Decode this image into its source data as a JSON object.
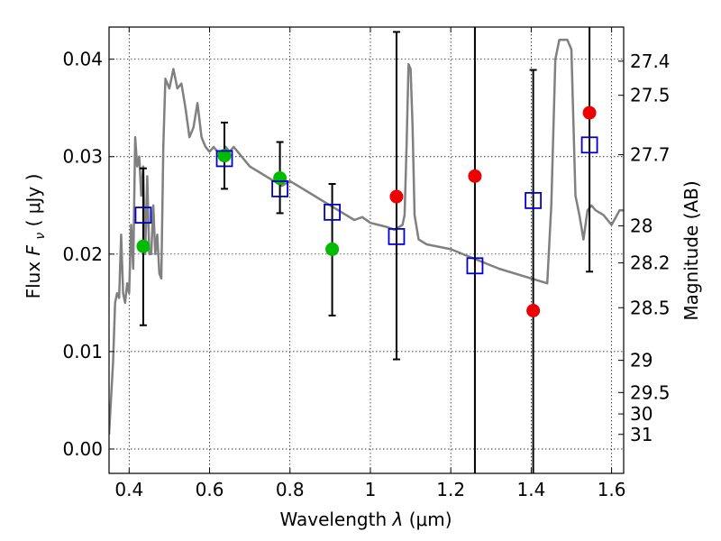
{
  "chart_data": {
    "type": "scatter",
    "title": "",
    "xlabel": {
      "prefix": "Wavelength ",
      "symbol": "λ",
      "unit": " (μm)"
    },
    "ylabel": {
      "prefix": "Flux ",
      "symbol": "F",
      "subscript": "ν",
      "unit": " ( μJy )"
    },
    "y2label": "Magnitude (AB)",
    "xlim": [
      0.35,
      1.63
    ],
    "ylim": [
      -0.0025,
      0.0433
    ],
    "grid": true,
    "legend": "none",
    "xticks": [
      0.4,
      0.6,
      0.8,
      1.0,
      1.2,
      1.4,
      1.6
    ],
    "xtick_labels": [
      "0.4",
      "0.6",
      "0.8",
      "1",
      "1.2",
      "1.4",
      "1.6"
    ],
    "yticks": [
      0.0,
      0.01,
      0.02,
      0.03,
      0.04
    ],
    "ytick_labels": [
      "0.00",
      "0.01",
      "0.02",
      "0.03",
      "0.04"
    ],
    "magnitude_ticks": [
      {
        "label": "27.4",
        "flux": 0.0398
      },
      {
        "label": "27.5",
        "flux": 0.0363
      },
      {
        "label": "27.7",
        "flux": 0.0302
      },
      {
        "label": "28",
        "flux": 0.0229
      },
      {
        "label": "28.2",
        "flux": 0.0191
      },
      {
        "label": "28.5",
        "flux": 0.0145
      },
      {
        "label": "29",
        "flux": 0.0091
      },
      {
        "label": "29.5",
        "flux": 0.0058
      },
      {
        "label": "30",
        "flux": 0.0036
      },
      {
        "label": "31",
        "flux": 0.0015
      }
    ],
    "colors": {
      "model": "#808080",
      "model_photometry": "#0000cc",
      "detected": "#00bb00",
      "nondetected": "#ee0000",
      "errorbar": "#000000"
    },
    "sed_model": {
      "x": [
        0.35,
        0.36,
        0.365,
        0.37,
        0.375,
        0.38,
        0.385,
        0.39,
        0.395,
        0.4,
        0.405,
        0.41,
        0.415,
        0.42,
        0.425,
        0.43,
        0.435,
        0.44,
        0.445,
        0.45,
        0.455,
        0.46,
        0.465,
        0.47,
        0.475,
        0.48,
        0.485,
        0.49,
        0.5,
        0.51,
        0.52,
        0.53,
        0.54,
        0.55,
        0.56,
        0.57,
        0.58,
        0.585,
        0.59,
        0.6,
        0.61,
        0.62,
        0.63,
        0.64,
        0.65,
        0.66,
        0.68,
        0.7,
        0.72,
        0.74,
        0.76,
        0.78,
        0.8,
        0.82,
        0.84,
        0.86,
        0.88,
        0.9,
        0.92,
        0.94,
        0.96,
        0.98,
        1.0,
        1.02,
        1.04,
        1.06,
        1.08,
        1.085,
        1.09,
        1.095,
        1.1,
        1.105,
        1.11,
        1.12,
        1.14,
        1.2,
        1.26,
        1.32,
        1.4,
        1.44,
        1.45,
        1.46,
        1.47,
        1.48,
        1.49,
        1.5,
        1.51,
        1.52,
        1.53,
        1.54,
        1.55,
        1.56,
        1.58,
        1.6,
        1.62,
        1.63
      ],
      "y": [
        0.0015,
        0.009,
        0.015,
        0.016,
        0.0155,
        0.022,
        0.016,
        0.015,
        0.017,
        0.016,
        0.023,
        0.0185,
        0.032,
        0.029,
        0.03,
        0.026,
        0.029,
        0.02,
        0.028,
        0.02,
        0.02,
        0.025,
        0.02,
        0.022,
        0.018,
        0.0175,
        0.031,
        0.038,
        0.037,
        0.039,
        0.037,
        0.0375,
        0.035,
        0.032,
        0.033,
        0.0355,
        0.032,
        0.0315,
        0.031,
        0.0305,
        0.031,
        0.0305,
        0.03,
        0.031,
        0.0305,
        0.031,
        0.03,
        0.029,
        0.0285,
        0.028,
        0.0275,
        0.027,
        0.0275,
        0.027,
        0.0265,
        0.026,
        0.0255,
        0.025,
        0.0245,
        0.024,
        0.0235,
        0.0238,
        0.0232,
        0.023,
        0.0228,
        0.0225,
        0.023,
        0.024,
        0.031,
        0.0395,
        0.039,
        0.033,
        0.024,
        0.0215,
        0.021,
        0.0205,
        0.0195,
        0.0185,
        0.0175,
        0.017,
        0.025,
        0.04,
        0.042,
        0.042,
        0.042,
        0.041,
        0.026,
        0.024,
        0.0215,
        0.0245,
        0.025,
        0.0245,
        0.024,
        0.023,
        0.0245,
        0.0245
      ]
    },
    "model_photometry": {
      "x": [
        0.435,
        0.637,
        0.775,
        0.905,
        1.065,
        1.26,
        1.405,
        1.545
      ],
      "y": [
        0.024,
        0.0298,
        0.0267,
        0.0243,
        0.0218,
        0.0188,
        0.0255,
        0.0312
      ]
    },
    "detected": {
      "x": [
        0.435,
        0.637,
        0.775,
        0.905
      ],
      "y": [
        0.0208,
        0.0301,
        0.0278,
        0.0205
      ],
      "yerr_low": [
        0.0127,
        0.0267,
        0.0242,
        0.0137
      ],
      "yerr_high": [
        0.0288,
        0.0335,
        0.0315,
        0.0272
      ]
    },
    "nondetected": {
      "x": [
        1.065,
        1.26,
        1.405,
        1.545
      ],
      "y": [
        0.0259,
        0.028,
        0.0142,
        0.0345
      ],
      "yerr_low": [
        0.0092,
        -0.0025,
        -0.0025,
        0.0182
      ],
      "yerr_high": [
        0.0428,
        0.0433,
        0.0389,
        0.0433
      ]
    }
  }
}
